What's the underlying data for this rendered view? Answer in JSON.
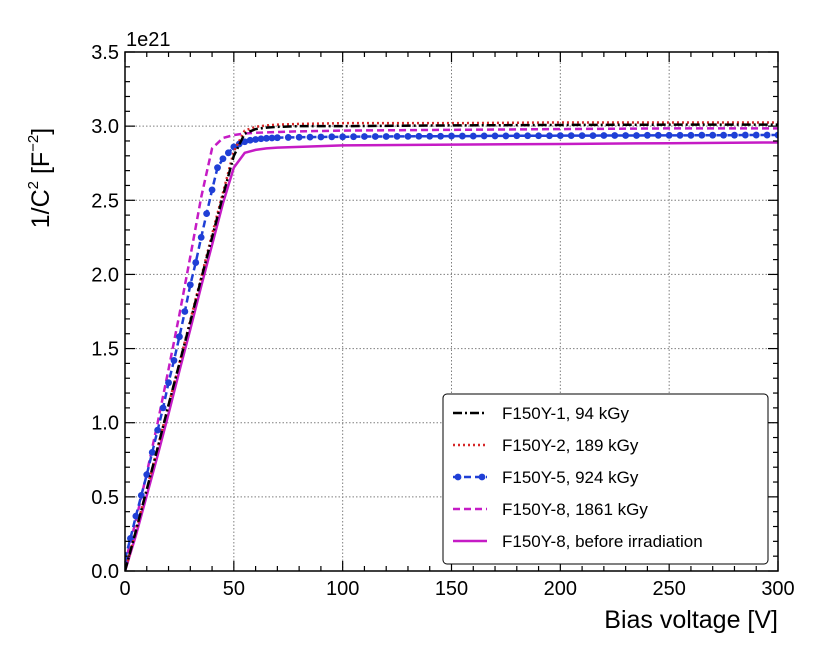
{
  "chart_data": {
    "type": "line",
    "xlabel": "Bias voltage [V]",
    "ylabel_main": "1/C",
    "ylabel_sup1": "2",
    "ylabel_mid": " [F",
    "ylabel_sup2": "−2",
    "ylabel_end": "]",
    "y_multiplier": "1e21",
    "xlim": [
      0,
      300
    ],
    "ylim": [
      0.0,
      3.5
    ],
    "x_ticks": [
      0,
      50,
      100,
      150,
      200,
      250,
      300
    ],
    "x_tick_labels": [
      "0",
      "50",
      "100",
      "150",
      "200",
      "250",
      "300"
    ],
    "y_ticks": [
      0.0,
      0.5,
      1.0,
      1.5,
      2.0,
      2.5,
      3.0,
      3.5
    ],
    "y_tick_labels": [
      "0.0",
      "0.5",
      "1.0",
      "1.5",
      "2.0",
      "2.5",
      "3.0",
      "3.5"
    ],
    "grid": true,
    "legend_position": "lower-right",
    "series": [
      {
        "name": "F150Y-1, 94 kGy",
        "color": "#000000",
        "style": "dashdot",
        "markers": false,
        "x": [
          0,
          5,
          10,
          15,
          20,
          25,
          30,
          35,
          40,
          45,
          50,
          55,
          60,
          65,
          70,
          80,
          100,
          150,
          200,
          250,
          300
        ],
        "y": [
          0.0,
          0.27,
          0.55,
          0.83,
          1.12,
          1.4,
          1.68,
          1.97,
          2.25,
          2.53,
          2.8,
          2.95,
          2.98,
          2.99,
          2.995,
          3.0,
          3.0,
          3.005,
          3.008,
          3.01,
          3.01
        ]
      },
      {
        "name": "F150Y-2, 189 kGy",
        "color": "#d62728",
        "style": "dotted",
        "markers": false,
        "x": [
          0,
          5,
          10,
          15,
          20,
          25,
          30,
          35,
          40,
          45,
          50,
          55,
          60,
          65,
          70,
          80,
          100,
          150,
          200,
          250,
          300
        ],
        "y": [
          0.0,
          0.27,
          0.55,
          0.83,
          1.12,
          1.4,
          1.69,
          1.98,
          2.27,
          2.55,
          2.83,
          2.97,
          2.995,
          3.005,
          3.01,
          3.015,
          3.02,
          3.02,
          3.025,
          3.025,
          3.025
        ]
      },
      {
        "name": "F150Y-5, 924 kGy",
        "color": "#1f3fd6",
        "style": "dashed",
        "markers": true,
        "x": [
          0,
          2.5,
          5,
          7.5,
          10,
          12.5,
          15,
          17.5,
          20,
          22.5,
          25,
          27.5,
          30,
          32.5,
          35,
          37.5,
          40,
          42.5,
          45,
          47.5,
          50,
          52.5,
          55,
          57.5,
          60,
          62.5,
          65,
          67.5,
          70,
          75,
          80,
          85,
          90,
          95,
          100,
          105,
          110,
          115,
          120,
          125,
          130,
          135,
          140,
          145,
          150,
          155,
          160,
          165,
          170,
          175,
          180,
          185,
          190,
          195,
          200,
          205,
          210,
          215,
          220,
          225,
          230,
          235,
          240,
          245,
          250,
          255,
          260,
          265,
          270,
          275,
          280,
          285,
          290,
          295,
          300
        ],
        "y": [
          0.08,
          0.22,
          0.37,
          0.51,
          0.65,
          0.8,
          0.95,
          1.1,
          1.27,
          1.42,
          1.58,
          1.75,
          1.93,
          2.08,
          2.25,
          2.41,
          2.57,
          2.72,
          2.78,
          2.82,
          2.86,
          2.88,
          2.895,
          2.905,
          2.91,
          2.915,
          2.918,
          2.92,
          2.922,
          2.924,
          2.925,
          2.926,
          2.927,
          2.928,
          2.928,
          2.929,
          2.93,
          2.93,
          2.93,
          2.931,
          2.931,
          2.932,
          2.932,
          2.932,
          2.933,
          2.933,
          2.933,
          2.934,
          2.934,
          2.934,
          2.935,
          2.935,
          2.935,
          2.935,
          2.936,
          2.936,
          2.936,
          2.936,
          2.937,
          2.937,
          2.937,
          2.937,
          2.938,
          2.938,
          2.938,
          2.938,
          2.938,
          2.939,
          2.939,
          2.939,
          2.939,
          2.94,
          2.94,
          2.94,
          2.94
        ]
      },
      {
        "name": "F150Y-8, 1861 kGy",
        "color": "#c51bc5",
        "style": "dashed",
        "markers": false,
        "x": [
          0,
          5,
          10,
          15,
          20,
          25,
          30,
          35,
          40,
          45,
          50,
          55,
          60,
          70,
          80,
          100,
          150,
          200,
          250,
          300
        ],
        "y": [
          0.05,
          0.34,
          0.66,
          1.0,
          1.36,
          1.73,
          2.12,
          2.52,
          2.85,
          2.92,
          2.94,
          2.95,
          2.955,
          2.96,
          2.965,
          2.97,
          2.975,
          2.98,
          2.985,
          2.985
        ]
      },
      {
        "name": "F150Y-8, before irradiation",
        "color": "#c51bc5",
        "style": "solid",
        "markers": false,
        "x": [
          0,
          5,
          10,
          15,
          20,
          25,
          30,
          35,
          40,
          45,
          50,
          55,
          60,
          65,
          70,
          80,
          100,
          150,
          200,
          250,
          300
        ],
        "y": [
          0.0,
          0.24,
          0.51,
          0.78,
          1.06,
          1.35,
          1.63,
          1.92,
          2.2,
          2.48,
          2.72,
          2.82,
          2.84,
          2.85,
          2.855,
          2.86,
          2.87,
          2.875,
          2.88,
          2.885,
          2.89
        ]
      }
    ]
  }
}
